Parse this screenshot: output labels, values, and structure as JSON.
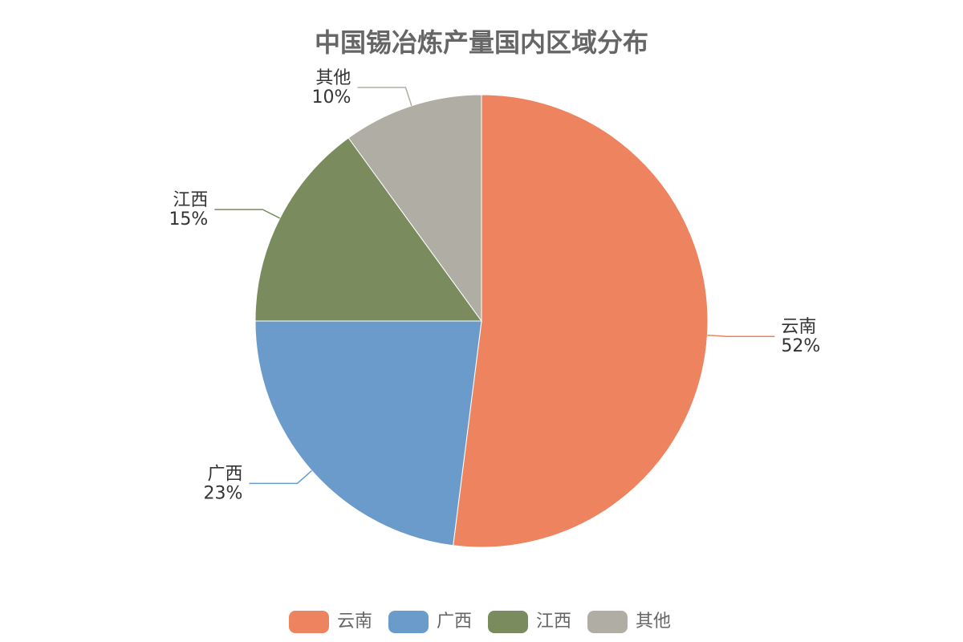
{
  "chart_data": {
    "type": "pie",
    "title": "中国锡冶炼产量国内区域分布",
    "categories": [
      "云南",
      "广西",
      "江西",
      "其他"
    ],
    "values": [
      52,
      23,
      15,
      10
    ],
    "value_labels": [
      "52%",
      "23%",
      "15%",
      "10%"
    ],
    "colors": [
      "#ed845f",
      "#6a9bcb",
      "#7a8b5d",
      "#b0ada4"
    ],
    "legend": "bottom"
  }
}
